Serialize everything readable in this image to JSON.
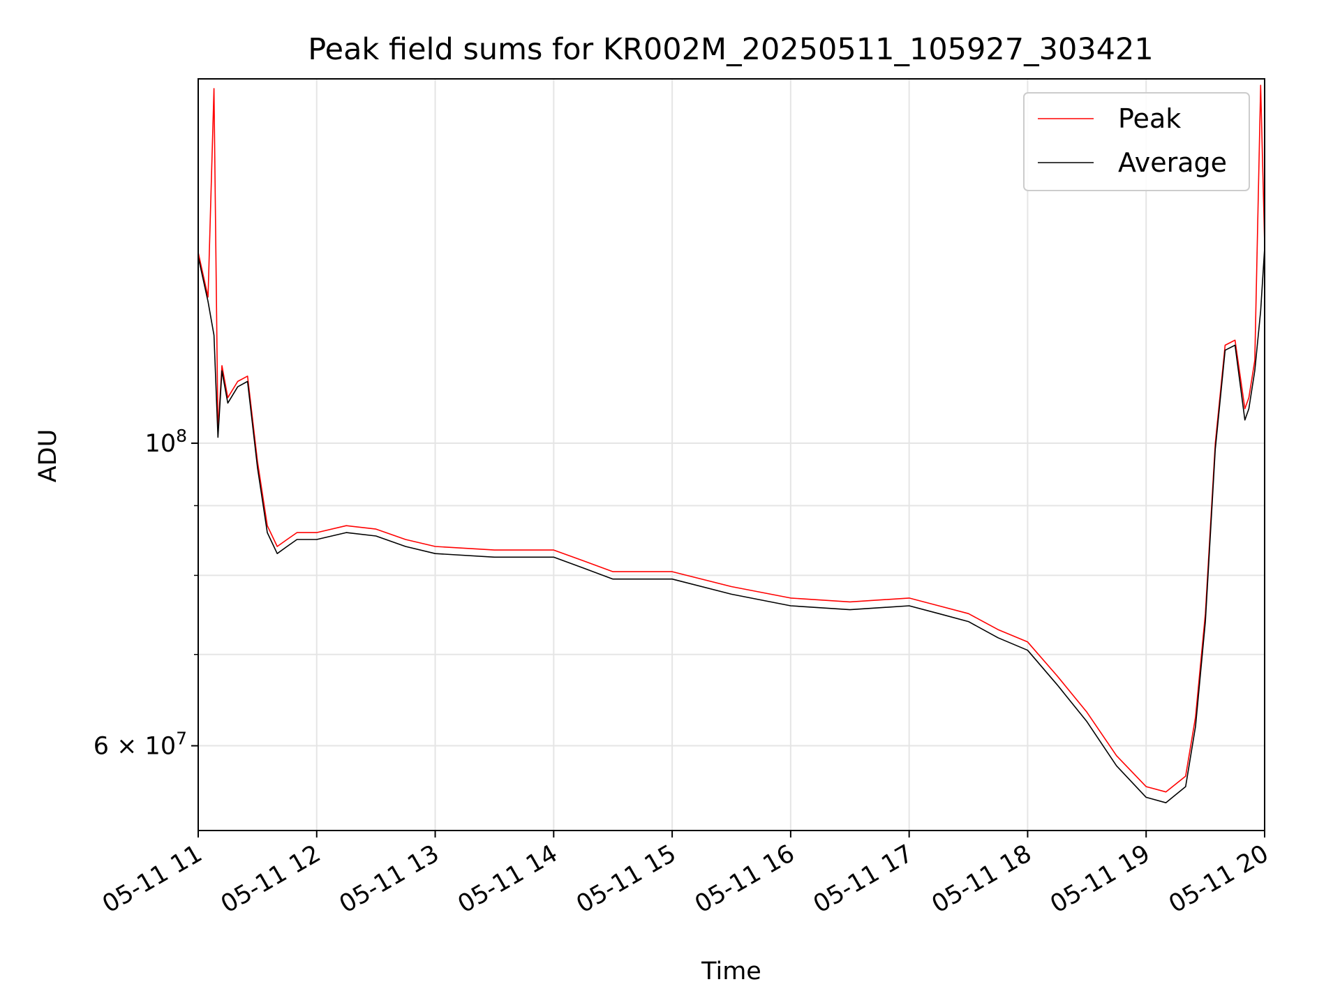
{
  "chart_data": {
    "type": "line",
    "title": "Peak field sums for KR002M_20250511_105927_303421",
    "xlabel": "Time",
    "ylabel": "ADU",
    "y_scale": "log",
    "grid": true,
    "legend_placement": "top-right",
    "xlim": [
      "2025-05-11 11:00",
      "2025-05-11 20:00"
    ],
    "ylim": [
      52000000,
      185000000
    ],
    "x_ticks": [
      "05-11 11",
      "05-11 12",
      "05-11 13",
      "05-11 14",
      "05-11 15",
      "05-11 16",
      "05-11 17",
      "05-11 18",
      "05-11 19",
      "05-11 20"
    ],
    "y_major_ticks": [
      {
        "value": 100000000,
        "base": "10",
        "exp": "8"
      },
      {
        "value": 60000000,
        "base": "6 × 10",
        "exp": "7"
      }
    ],
    "y_minor_ticks": [
      70000000,
      80000000,
      90000000
    ],
    "x": [
      "11:00",
      "11:05",
      "11:08",
      "11:10",
      "11:12",
      "11:15",
      "11:20",
      "11:25",
      "11:30",
      "11:35",
      "11:40",
      "11:45",
      "11:50",
      "12:00",
      "12:15",
      "12:30",
      "12:45",
      "13:00",
      "13:30",
      "14:00",
      "14:15",
      "14:30",
      "15:00",
      "15:30",
      "16:00",
      "16:30",
      "17:00",
      "17:15",
      "17:30",
      "17:45",
      "18:00",
      "18:15",
      "18:30",
      "18:45",
      "19:00",
      "19:10",
      "19:20",
      "19:25",
      "19:30",
      "19:35",
      "19:40",
      "19:45",
      "19:50",
      "19:52",
      "19:55",
      "19:58",
      "20:00"
    ],
    "series": [
      {
        "name": "Peak",
        "color": "#ff0000",
        "values": [
          138000000,
          128000000,
          182000000,
          102000000,
          114000000,
          108000000,
          111000000,
          112000000,
          97000000,
          87000000,
          84000000,
          85000000,
          86000000,
          86000000,
          87000000,
          86500000,
          85000000,
          84000000,
          83500000,
          83500000,
          82000000,
          80500000,
          80500000,
          78500000,
          77000000,
          76500000,
          77000000,
          76000000,
          75000000,
          73000000,
          71500000,
          67500000,
          63500000,
          59000000,
          56000000,
          55500000,
          57000000,
          63000000,
          75000000,
          100000000,
          118000000,
          119000000,
          106000000,
          108000000,
          115000000,
          183000000,
          140000000
        ]
      },
      {
        "name": "Average",
        "color": "#000000",
        "values": [
          137000000,
          127000000,
          120000000,
          101000000,
          113000000,
          107000000,
          110000000,
          111000000,
          96000000,
          86000000,
          83000000,
          84000000,
          85000000,
          85000000,
          86000000,
          85500000,
          84000000,
          83000000,
          82500000,
          82500000,
          81000000,
          79500000,
          79500000,
          77500000,
          76000000,
          75500000,
          76000000,
          75000000,
          74000000,
          72000000,
          70500000,
          66500000,
          62500000,
          58000000,
          55000000,
          54500000,
          56000000,
          62000000,
          74000000,
          99000000,
          117000000,
          118000000,
          104000000,
          106000000,
          113000000,
          125000000,
          139000000
        ]
      }
    ]
  }
}
